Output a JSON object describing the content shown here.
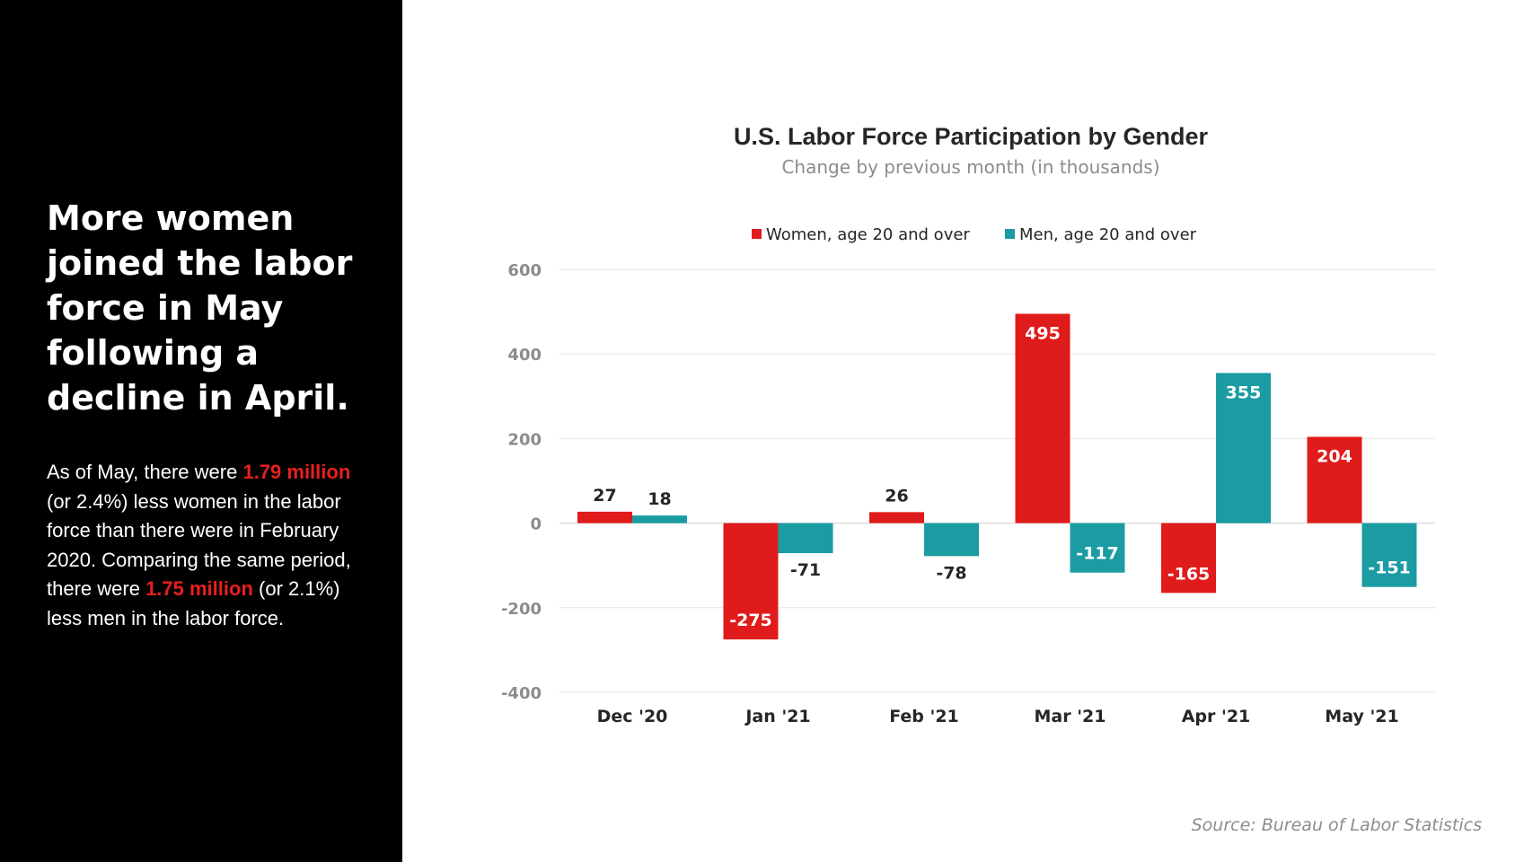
{
  "headline": "More women joined the labor force in May following a decline in April.",
  "body": {
    "part1": "As of May, there were ",
    "highlight1": "1.79 million",
    "part2": " (or 2.4%) less women in the labor force than there were in February 2020. Comparing the same period, there were ",
    "highlight2": "1.75 million",
    "part3": " (or 2.1%) less men in the labor force."
  },
  "source": "Source: Bureau of Labor Statistics",
  "colors": {
    "women": "#e01b1b",
    "men": "#1b9ca3",
    "highlight": "#e8201e",
    "panel": "#000000"
  },
  "chart_data": {
    "type": "bar",
    "title": "U.S. Labor Force Participation by Gender",
    "subtitle": "Change by previous month (in thousands)",
    "categories": [
      "Dec '20",
      "Jan '21",
      "Feb '21",
      "Mar '21",
      "Apr '21",
      "May '21"
    ],
    "series": [
      {
        "name": "Women, age 20 and over",
        "values": [
          27,
          -275,
          26,
          495,
          -165,
          204
        ]
      },
      {
        "name": "Men, age 20 and over",
        "values": [
          18,
          -71,
          -78,
          -117,
          355,
          -151
        ]
      }
    ],
    "ylim": [
      -400,
      600
    ],
    "yticks": [
      -400,
      -200,
      0,
      200,
      400,
      600
    ],
    "grid": true,
    "legend_position": "top"
  }
}
